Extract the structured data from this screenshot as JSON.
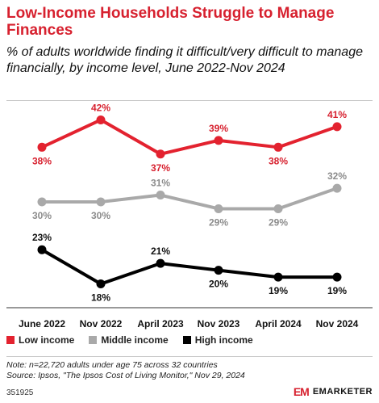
{
  "header": {
    "title": "Low-Income Households Struggle to Manage Finances",
    "subtitle": "% of adults worldwide finding it difficult/very difficult to manage financially, by income level, June 2022-Nov 2024"
  },
  "chart_data": {
    "type": "line",
    "categories": [
      "June 2022",
      "Nov 2022",
      "April 2023",
      "Nov 2023",
      "April 2024",
      "Nov 2024"
    ],
    "series": [
      {
        "name": "Low income",
        "color": "#e3222f",
        "label_color": "#d7212f",
        "label_position": "below",
        "values": [
          38,
          42,
          37,
          39,
          38,
          41
        ],
        "labels": [
          "38%",
          "42%",
          "37%",
          "39%",
          "38%",
          "41%"
        ]
      },
      {
        "name": "Middle income",
        "color": "#a9a9a9",
        "label_color": "#8c8c8c",
        "label_position": "below",
        "values": [
          30,
          30,
          31,
          29,
          29,
          32
        ],
        "labels": [
          "30%",
          "30%",
          "31%",
          "29%",
          "29%",
          "32%"
        ]
      },
      {
        "name": "High income",
        "color": "#000000",
        "label_color": "#111111",
        "label_position": "mixed",
        "values": [
          23,
          18,
          21,
          20,
          19,
          19
        ],
        "labels": [
          "23%",
          "18%",
          "21%",
          "20%",
          "19%",
          "19%"
        ]
      }
    ],
    "grid": false,
    "legend_position": "bottom-left"
  },
  "footer": {
    "note": "Note: n=22,720 adults under age 75 across 32 countries",
    "source": "Source: Ipsos, \"The Ipsos Cost of Living Monitor,\" Nov 29, 2024",
    "chart_id": "351925",
    "brand_mark": "EM",
    "brand_name": "EMARKETER"
  }
}
